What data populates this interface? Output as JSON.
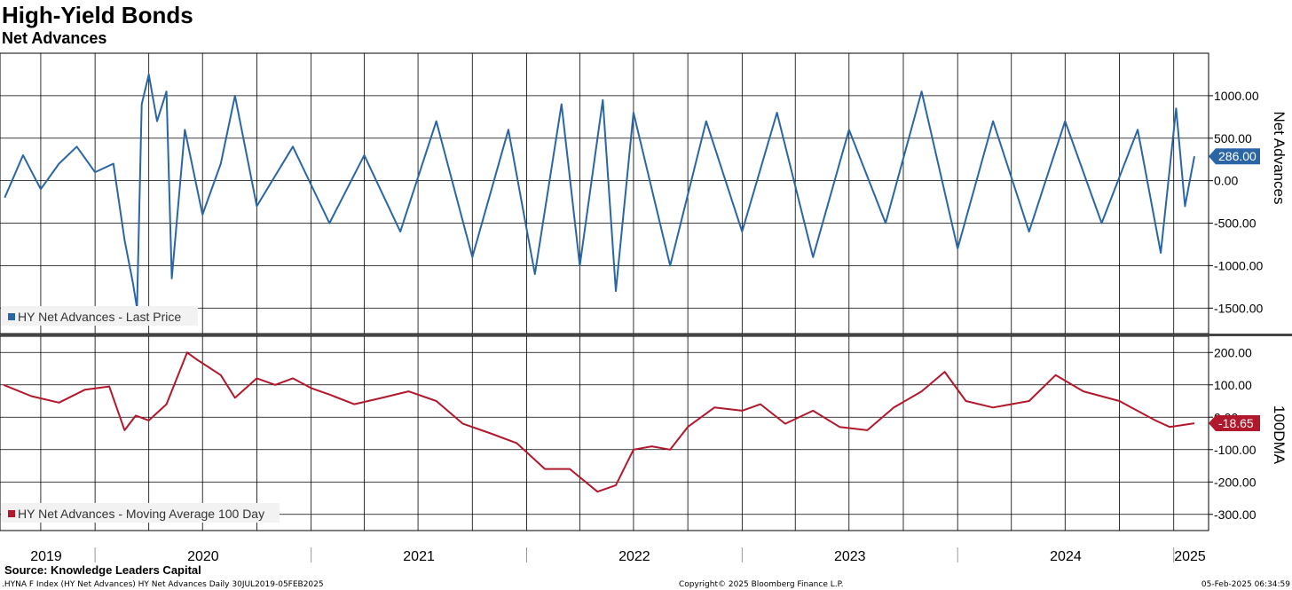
{
  "title": "High-Yield Bonds",
  "subtitle": "Net Advances",
  "source": "Source: Knowledge Leaders Capital",
  "footer": {
    "left": ".HYNA F Index (HY Net Advances) HY Net Advances  Daily 30JUL2019-05FEB2025",
    "center": "Copyright© 2025 Bloomberg Finance L.P.",
    "right": "05-Feb-2025 06:34:59"
  },
  "colors": {
    "top_series": "#2a66a5",
    "bottom_series": "#b1182b"
  },
  "chart_data": [
    {
      "type": "line",
      "x_axis": {
        "type": "date",
        "start": "2019-07-30",
        "end": "2025-02-05",
        "tick_labels": [
          "2019",
          "2020",
          "2021",
          "2022",
          "2023",
          "2024",
          "2025"
        ]
      },
      "y_axis": {
        "label": "Net Advances",
        "ylim": [
          -1800,
          1500
        ],
        "ticks": [
          -1500,
          -1000,
          -500,
          0,
          500,
          1000
        ],
        "tick_labels": [
          "-1500.00",
          "-1000.00",
          "-500.00",
          "0.00",
          "500.00",
          "1000.00"
        ]
      },
      "grid": true,
      "legend": "bottom-left",
      "last_value_label": "286.00",
      "series": [
        {
          "name": "HY Net Advances - Last Price",
          "approximate_range": [
            -1500,
            1250
          ],
          "last_value": 286,
          "points": [
            [
              "2019-08-01",
              -200
            ],
            [
              "2019-09-01",
              300
            ],
            [
              "2019-10-01",
              -100
            ],
            [
              "2019-11-01",
              200
            ],
            [
              "2019-12-01",
              400
            ],
            [
              "2020-01-01",
              100
            ],
            [
              "2020-02-01",
              200
            ],
            [
              "2020-02-20",
              -700
            ],
            [
              "2020-03-05",
              -1200
            ],
            [
              "2020-03-12",
              -1500
            ],
            [
              "2020-03-20",
              900
            ],
            [
              "2020-04-01",
              1250
            ],
            [
              "2020-04-15",
              700
            ],
            [
              "2020-05-01",
              1050
            ],
            [
              "2020-05-10",
              -1150
            ],
            [
              "2020-06-01",
              600
            ],
            [
              "2020-07-01",
              -400
            ],
            [
              "2020-08-01",
              200
            ],
            [
              "2020-08-25",
              1000
            ],
            [
              "2020-10-01",
              -300
            ],
            [
              "2020-12-01",
              400
            ],
            [
              "2021-02-01",
              -500
            ],
            [
              "2021-04-01",
              300
            ],
            [
              "2021-06-01",
              -600
            ],
            [
              "2021-08-01",
              700
            ],
            [
              "2021-10-01",
              -900
            ],
            [
              "2021-12-01",
              600
            ],
            [
              "2022-01-15",
              -1100
            ],
            [
              "2022-03-01",
              900
            ],
            [
              "2022-04-01",
              -1000
            ],
            [
              "2022-05-10",
              950
            ],
            [
              "2022-06-01",
              -1300
            ],
            [
              "2022-07-01",
              800
            ],
            [
              "2022-09-01",
              -1000
            ],
            [
              "2022-11-01",
              700
            ],
            [
              "2023-01-01",
              -600
            ],
            [
              "2023-03-01",
              800
            ],
            [
              "2023-05-01",
              -900
            ],
            [
              "2023-07-01",
              600
            ],
            [
              "2023-09-01",
              -500
            ],
            [
              "2023-11-01",
              1050
            ],
            [
              "2024-01-01",
              -800
            ],
            [
              "2024-03-01",
              700
            ],
            [
              "2024-05-01",
              -600
            ],
            [
              "2024-07-01",
              700
            ],
            [
              "2024-09-01",
              -500
            ],
            [
              "2024-11-01",
              600
            ],
            [
              "2024-12-10",
              -850
            ],
            [
              "2025-01-05",
              850
            ],
            [
              "2025-01-20",
              -300
            ],
            [
              "2025-02-05",
              286
            ]
          ]
        }
      ]
    },
    {
      "type": "line",
      "x_axis": {
        "type": "date",
        "start": "2019-07-30",
        "end": "2025-02-05",
        "tick_labels": [
          "2019",
          "2020",
          "2021",
          "2022",
          "2023",
          "2024",
          "2025"
        ]
      },
      "y_axis": {
        "label": "100DMA",
        "ylim": [
          -350,
          250
        ],
        "ticks": [
          -300,
          -200,
          -100,
          0,
          100,
          200
        ],
        "tick_labels": [
          "-300.00",
          "-200.00",
          "-100.00",
          "0.00",
          "100.00",
          "200.00"
        ]
      },
      "grid": true,
      "legend": "bottom-left",
      "last_value_label": "-18.65",
      "series": [
        {
          "name": "HY Net Advances - Moving Average 100 Day",
          "last_value": -18.65,
          "points": [
            [
              "2019-07-30",
              100
            ],
            [
              "2019-09-15",
              65
            ],
            [
              "2019-11-01",
              45
            ],
            [
              "2019-12-15",
              85
            ],
            [
              "2020-01-25",
              95
            ],
            [
              "2020-02-20",
              -40
            ],
            [
              "2020-03-10",
              5
            ],
            [
              "2020-04-01",
              -10
            ],
            [
              "2020-05-01",
              40
            ],
            [
              "2020-06-05",
              200
            ],
            [
              "2020-06-20",
              180
            ],
            [
              "2020-08-01",
              130
            ],
            [
              "2020-08-25",
              60
            ],
            [
              "2020-10-01",
              120
            ],
            [
              "2020-11-01",
              100
            ],
            [
              "2020-12-01",
              120
            ],
            [
              "2021-01-01",
              90
            ],
            [
              "2021-02-01",
              70
            ],
            [
              "2021-03-15",
              40
            ],
            [
              "2021-05-01",
              60
            ],
            [
              "2021-06-15",
              80
            ],
            [
              "2021-08-01",
              50
            ],
            [
              "2021-09-15",
              -20
            ],
            [
              "2021-11-01",
              -50
            ],
            [
              "2021-12-15",
              -80
            ],
            [
              "2022-02-01",
              -160
            ],
            [
              "2022-03-15",
              -160
            ],
            [
              "2022-05-01",
              -230
            ],
            [
              "2022-06-01",
              -210
            ],
            [
              "2022-07-01",
              -100
            ],
            [
              "2022-08-01",
              -90
            ],
            [
              "2022-09-01",
              -100
            ],
            [
              "2022-10-01",
              -30
            ],
            [
              "2022-11-15",
              30
            ],
            [
              "2023-01-01",
              20
            ],
            [
              "2023-02-01",
              40
            ],
            [
              "2023-03-15",
              -20
            ],
            [
              "2023-05-01",
              20
            ],
            [
              "2023-06-15",
              -30
            ],
            [
              "2023-08-01",
              -40
            ],
            [
              "2023-09-15",
              30
            ],
            [
              "2023-11-01",
              80
            ],
            [
              "2023-12-10",
              140
            ],
            [
              "2024-01-15",
              50
            ],
            [
              "2024-03-01",
              30
            ],
            [
              "2024-05-01",
              50
            ],
            [
              "2024-06-15",
              130
            ],
            [
              "2024-08-01",
              80
            ],
            [
              "2024-10-01",
              50
            ],
            [
              "2024-12-01",
              -10
            ],
            [
              "2024-12-25",
              -30
            ],
            [
              "2025-02-05",
              -18.65
            ]
          ]
        }
      ]
    }
  ]
}
